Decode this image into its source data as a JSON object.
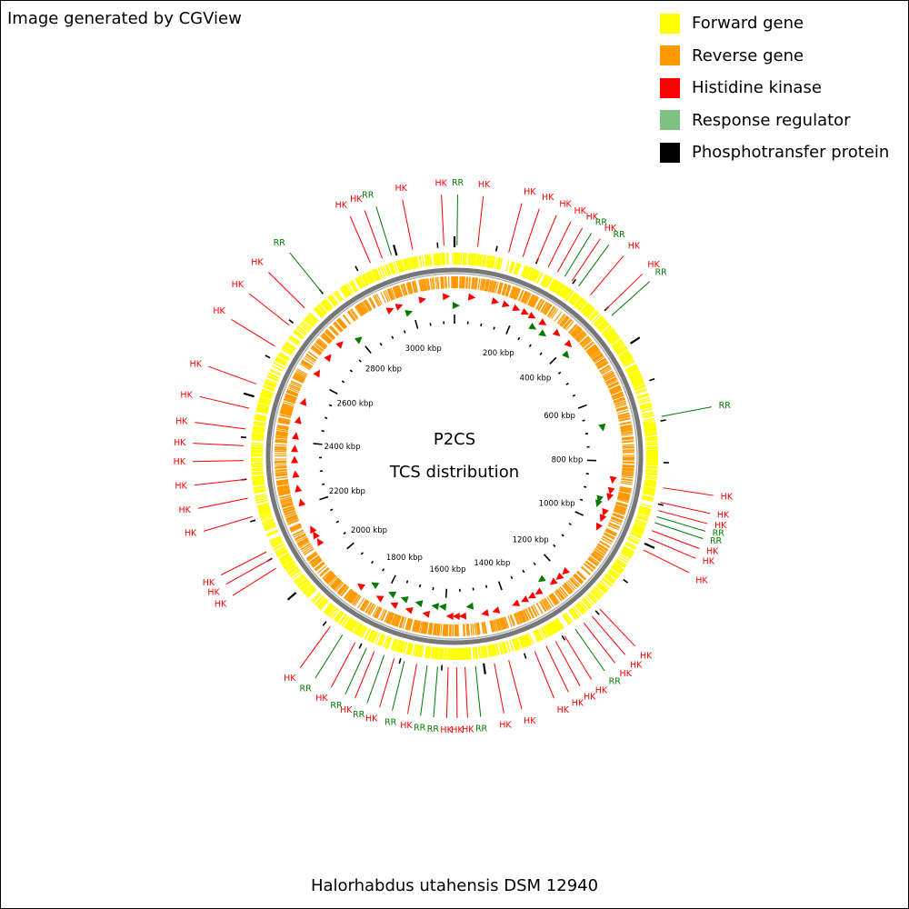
{
  "credit": "Image generated by CGView",
  "organism": "Halorhabdus utahensis DSM 12940",
  "center": {
    "line1": "P2CS",
    "line2": "TCS distribution"
  },
  "legend": [
    {
      "label": "Forward gene",
      "color": "#ffff00"
    },
    {
      "label": "Reverse gene",
      "color": "#ff9900"
    },
    {
      "label": "Histidine kinase",
      "color": "#ff0000"
    },
    {
      "label": "Response regulator",
      "color": "#7fbf7f"
    },
    {
      "label": "Phosphotransfer protein",
      "color": "#000000"
    }
  ],
  "colors": {
    "forward": "#ffff00",
    "reverse": "#ff9900",
    "hk": "#ff0000",
    "rr": "#007a00",
    "backbone": "#777777",
    "ticks": "#000000"
  },
  "genome_map": {
    "genome_length_kbp": 3140,
    "tick_labels": [
      {
        "kbp": 200,
        "text": "200 kbp"
      },
      {
        "kbp": 400,
        "text": "400 kbp"
      },
      {
        "kbp": 600,
        "text": "600 kbp"
      },
      {
        "kbp": 800,
        "text": "800 kbp"
      },
      {
        "kbp": 1000,
        "text": "1000 kbp"
      },
      {
        "kbp": 1200,
        "text": "1200 kbp"
      },
      {
        "kbp": 1400,
        "text": "1400 kbp"
      },
      {
        "kbp": 1600,
        "text": "1600 kbp"
      },
      {
        "kbp": 1800,
        "text": "1800 kbp"
      },
      {
        "kbp": 2000,
        "text": "2000 kbp"
      },
      {
        "kbp": 2200,
        "text": "2200 kbp"
      },
      {
        "kbp": 2400,
        "text": "2400 kbp"
      },
      {
        "kbp": 2600,
        "text": "2600 kbp"
      },
      {
        "kbp": 2800,
        "text": "2800 kbp"
      },
      {
        "kbp": 3000,
        "text": "3000 kbp"
      }
    ],
    "features": [
      {
        "kbp": 2935,
        "type": "HK"
      },
      {
        "kbp": 2965,
        "type": "HK"
      },
      {
        "kbp": 2988,
        "type": "RR"
      },
      {
        "kbp": 3040,
        "type": "HK"
      },
      {
        "kbp": 3115,
        "type": "HK"
      },
      {
        "kbp": 6,
        "type": "RR"
      },
      {
        "kbp": 55,
        "type": "HK"
      },
      {
        "kbp": 130,
        "type": "HK"
      },
      {
        "kbp": 165,
        "type": "HK"
      },
      {
        "kbp": 200,
        "type": "HK"
      },
      {
        "kbp": 230,
        "type": "HK"
      },
      {
        "kbp": 255,
        "type": "HK"
      },
      {
        "kbp": 275,
        "type": "RR"
      },
      {
        "kbp": 295,
        "type": "HK"
      },
      {
        "kbp": 315,
        "type": "RR"
      },
      {
        "kbp": 350,
        "type": "HK"
      },
      {
        "kbp": 400,
        "type": "HK"
      },
      {
        "kbp": 420,
        "type": "RR"
      },
      {
        "kbp": 690,
        "type": "RR"
      },
      {
        "kbp": 860,
        "type": "HK"
      },
      {
        "kbp": 895,
        "type": "HK"
      },
      {
        "kbp": 915,
        "type": "HK"
      },
      {
        "kbp": 930,
        "type": "RR"
      },
      {
        "kbp": 945,
        "type": "RR"
      },
      {
        "kbp": 965,
        "type": "HK"
      },
      {
        "kbp": 985,
        "type": "HK"
      },
      {
        "kbp": 1015,
        "type": "HK"
      },
      {
        "kbp": 1190,
        "type": "HK"
      },
      {
        "kbp": 1215,
        "type": "HK"
      },
      {
        "kbp": 1240,
        "type": "HK"
      },
      {
        "kbp": 1265,
        "type": "RR"
      },
      {
        "kbp": 1295,
        "type": "HK"
      },
      {
        "kbp": 1320,
        "type": "HK"
      },
      {
        "kbp": 1345,
        "type": "HK"
      },
      {
        "kbp": 1375,
        "type": "HK"
      },
      {
        "kbp": 1440,
        "type": "HK"
      },
      {
        "kbp": 1475,
        "type": "HK"
      },
      {
        "kbp": 1520,
        "type": "RR"
      },
      {
        "kbp": 1545,
        "type": "HK"
      },
      {
        "kbp": 1565,
        "type": "HK"
      },
      {
        "kbp": 1585,
        "type": "HK"
      },
      {
        "kbp": 1610,
        "type": "RR"
      },
      {
        "kbp": 1635,
        "type": "RR"
      },
      {
        "kbp": 1660,
        "type": "HK"
      },
      {
        "kbp": 1690,
        "type": "RR"
      },
      {
        "kbp": 1715,
        "type": "HK"
      },
      {
        "kbp": 1740,
        "type": "RR"
      },
      {
        "kbp": 1765,
        "type": "HK"
      },
      {
        "kbp": 1785,
        "type": "RR"
      },
      {
        "kbp": 1815,
        "type": "HK"
      },
      {
        "kbp": 1850,
        "type": "RR"
      },
      {
        "kbp": 1885,
        "type": "HK"
      },
      {
        "kbp": 2075,
        "type": "HK"
      },
      {
        "kbp": 2100,
        "type": "HK"
      },
      {
        "kbp": 2120,
        "type": "HK"
      },
      {
        "kbp": 2210,
        "type": "HK"
      },
      {
        "kbp": 2255,
        "type": "HK"
      },
      {
        "kbp": 2300,
        "type": "HK"
      },
      {
        "kbp": 2345,
        "type": "HK"
      },
      {
        "kbp": 2380,
        "type": "HK"
      },
      {
        "kbp": 2420,
        "type": "HK"
      },
      {
        "kbp": 2470,
        "type": "HK"
      },
      {
        "kbp": 2530,
        "type": "HK"
      },
      {
        "kbp": 2630,
        "type": "HK"
      },
      {
        "kbp": 2690,
        "type": "HK"
      },
      {
        "kbp": 2745,
        "type": "HK"
      },
      {
        "kbp": 2800,
        "type": "RR"
      }
    ]
  }
}
